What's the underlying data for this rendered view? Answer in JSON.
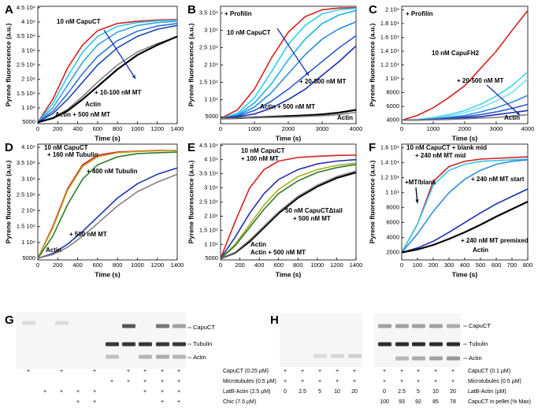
{
  "chart_data": [
    {
      "panel": "A",
      "type": "line",
      "xlabel": "Time (s)",
      "ylabel": "Pyrene fluorescence (a.u.)",
      "x": [
        0,
        150,
        300,
        450,
        600,
        800,
        1000,
        1200,
        1400
      ],
      "xlim": [
        0,
        1400
      ],
      "xticks": [
        0,
        200,
        400,
        600,
        800,
        1000,
        1200,
        1400
      ],
      "ylim": [
        4500,
        45500
      ],
      "yticks": [
        5000,
        {
          "value": 10000,
          "label": "1 10⁴"
        },
        {
          "value": 15000,
          "label": "1.5 10⁴"
        },
        {
          "value": 20000,
          "label": "2 10⁴"
        },
        {
          "value": 25000,
          "label": "2.5 10⁴"
        },
        {
          "value": 30000,
          "label": "3 10⁴"
        },
        {
          "value": 35000,
          "label": "3.5 10⁴"
        },
        {
          "value": 40000,
          "label": "4 10⁴"
        },
        {
          "value": 45000,
          "label": "4.5 10⁴"
        }
      ],
      "series": [
        {
          "name": "10 nM CapuCT",
          "color": "#d62020",
          "values": [
            5000,
            13000,
            24000,
            32000,
            37000,
            39500,
            40300,
            40700,
            40900
          ]
        },
        {
          "color": "#2cc8ea",
          "values": [
            5000,
            11500,
            21000,
            29500,
            35000,
            38500,
            39800,
            40400,
            40700
          ]
        },
        {
          "color": "#35a2e2",
          "values": [
            5000,
            10000,
            18000,
            26000,
            32000,
            36500,
            38800,
            39800,
            40300
          ]
        },
        {
          "color": "#2f72d2",
          "values": [
            5000,
            8800,
            15000,
            22000,
            28000,
            33500,
            36800,
            38600,
            39500
          ]
        },
        {
          "color": "#1c48b5",
          "values": [
            5000,
            8000,
            13000,
            19000,
            25000,
            31000,
            35000,
            37500,
            38800
          ]
        },
        {
          "name": "Actin",
          "color": "#808080",
          "values": [
            5000,
            6500,
            9500,
            14000,
            19000,
            25000,
            29500,
            32500,
            34800
          ]
        },
        {
          "name": "Actin + 500 nM MT",
          "color": "#000000",
          "values": [
            5000,
            6400,
            9000,
            13000,
            17500,
            23500,
            28500,
            32000,
            35000
          ]
        }
      ],
      "annotations": [
        {
          "text": "+ 10-100 nM MT",
          "color": "#1a2db0"
        }
      ]
    },
    {
      "panel": "B",
      "type": "line",
      "xlabel": "Time (s)",
      "ylabel": "Pyrene fluorescence (a.u.)",
      "x": [
        0,
        500,
        1000,
        1500,
        2000,
        2500,
        3000,
        3500,
        4000
      ],
      "xlim": [
        0,
        4000
      ],
      "xticks": [
        0,
        1000,
        2000,
        3000,
        4000
      ],
      "ylim": [
        3000,
        37000
      ],
      "yticks": [
        5000,
        {
          "value": 10000,
          "label": "1 10⁴"
        },
        {
          "value": 15000,
          "label": "1.5 10⁴"
        },
        {
          "value": 20000,
          "label": "2 10⁴"
        },
        {
          "value": 25000,
          "label": "2.5 10⁴"
        },
        {
          "value": 30000,
          "label": "3 10⁴"
        },
        {
          "value": 35000,
          "label": "3.5 10⁴"
        }
      ],
      "series": [
        {
          "name": "10 nM CapuCT",
          "color": "#d62020",
          "values": [
            4500,
            7000,
            13000,
            22000,
            29500,
            34000,
            36000,
            36500,
            36600
          ]
        },
        {
          "color": "#2ad0ee",
          "values": [
            4500,
            6000,
            10500,
            18000,
            26000,
            31500,
            34800,
            36000,
            36400
          ]
        },
        {
          "color": "#1fb2e8",
          "values": [
            4500,
            5600,
            9000,
            14500,
            21500,
            27500,
            32000,
            34500,
            35800
          ]
        },
        {
          "color": "#2d8ae0",
          "values": [
            4500,
            5400,
            7800,
            12000,
            17500,
            23000,
            27500,
            30500,
            32500
          ]
        },
        {
          "color": "#2a5ed0",
          "values": [
            4500,
            5200,
            6800,
            9500,
            13000,
            17000,
            21000,
            25000,
            28500
          ]
        },
        {
          "color": "#1a2db0",
          "values": [
            4500,
            5000,
            5800,
            7500,
            10000,
            13000,
            17000,
            21000,
            25500
          ]
        },
        {
          "name": "Actin + 500 nM MT",
          "color": "#000000",
          "values": [
            4500,
            4600,
            4800,
            5000,
            5200,
            5400,
            5700,
            6200,
            7000
          ]
        },
        {
          "name": "Actin",
          "color": "#808080",
          "values": [
            4500,
            4600,
            4700,
            4800,
            4900,
            5100,
            5300,
            5600,
            6300
          ]
        }
      ],
      "annotations": [
        {
          "text": "+ Profilin",
          "color": "#000000"
        },
        {
          "text": "+ 20-500 nM MT",
          "color": "#1a2db0"
        }
      ]
    },
    {
      "panel": "C",
      "type": "line",
      "xlabel": "Time (s)",
      "ylabel": "Pyrene fluorescence (a.u.)",
      "x": [
        0,
        500,
        1000,
        1500,
        2000,
        2500,
        3000,
        3500,
        4000
      ],
      "xlim": [
        0,
        4000
      ],
      "xticks": [
        0,
        1000,
        2000,
        3000,
        4000
      ],
      "ylim": [
        3500,
        20500
      ],
      "yticks": [
        4000,
        6000,
        8000,
        {
          "value": 10000,
          "label": "1 10⁴"
        },
        {
          "value": 12000,
          "label": "1.2 10⁴"
        },
        {
          "value": 14000,
          "label": "1.4 10⁴"
        },
        {
          "value": 16000,
          "label": "1.6 10⁴"
        },
        {
          "value": 18000,
          "label": "1.8 10⁴"
        },
        {
          "value": 20000,
          "label": "2 10⁴"
        }
      ],
      "series": [
        {
          "name": "10 nM CapuFH2",
          "color": "#d62020",
          "values": [
            4000,
            4700,
            5800,
            7300,
            9000,
            11500,
            14000,
            17000,
            19900
          ]
        },
        {
          "color": "#3fd6f0",
          "values": [
            4000,
            4100,
            4400,
            4800,
            5400,
            6300,
            7500,
            9000,
            11000
          ]
        },
        {
          "color": "#7fdcf2",
          "values": [
            4000,
            4100,
            4300,
            4600,
            5100,
            5800,
            6800,
            8000,
            10000
          ]
        },
        {
          "color": "#2c8ae0",
          "values": [
            4000,
            4050,
            4200,
            4400,
            4700,
            5200,
            5800,
            6600,
            7600
          ]
        },
        {
          "color": "#2a5ed0",
          "values": [
            4000,
            4050,
            4150,
            4300,
            4500,
            4800,
            5200,
            5700,
            6300
          ]
        },
        {
          "color": "#1a2db0",
          "values": [
            4000,
            4000,
            4100,
            4200,
            4350,
            4500,
            4800,
            5100,
            5400
          ]
        },
        {
          "name": "Actin",
          "color": "#808080",
          "values": [
            4000,
            4000,
            4050,
            4100,
            4200,
            4300,
            4400,
            4600,
            4800
          ]
        }
      ],
      "annotations": [
        {
          "text": "+ Profilin",
          "color": "#000000"
        },
        {
          "text": "+ 20-500 nM MT",
          "color": "#1a2db0"
        }
      ]
    },
    {
      "panel": "D",
      "type": "line",
      "xlabel": "Time (s)",
      "ylabel": "Pyrene fluorescence (a.u.)",
      "x": [
        0,
        150,
        300,
        450,
        600,
        800,
        1000,
        1200,
        1400
      ],
      "xlim": [
        0,
        1400
      ],
      "xticks": [
        0,
        200,
        400,
        600,
        800,
        1000,
        1200,
        1400
      ],
      "ylim": [
        4500,
        41000
      ],
      "yticks": [
        5000,
        {
          "value": 10000,
          "label": "1 10⁴"
        },
        {
          "value": 15000,
          "label": "1.5 10⁴"
        },
        {
          "value": 20000,
          "label": "2 10⁴"
        },
        {
          "value": 25000,
          "label": "2.5 10⁴"
        },
        {
          "value": 30000,
          "label": "3 10⁴"
        },
        {
          "value": 35000,
          "label": "3.5 10⁴"
        },
        {
          "value": 40000,
          "label": "4 10⁴"
        }
      ],
      "series": [
        {
          "name": "10 nM CapuCT",
          "color": "#d62020",
          "values": [
            5000,
            15000,
            27000,
            34500,
            37500,
            38500,
            38800,
            39000,
            39000
          ]
        },
        {
          "name": "+ 160 nM Tubulin",
          "color": "#b9a520",
          "values": [
            5000,
            14500,
            26500,
            34000,
            37000,
            38300,
            38700,
            38900,
            39000
          ]
        },
        {
          "name": "+ 400 nM Tubulin",
          "color": "#2f7a2a",
          "values": [
            5000,
            12000,
            22000,
            30000,
            34500,
            37000,
            38000,
            38300,
            38500
          ]
        },
        {
          "name": "+ 500 nM MT",
          "color": "#2030b0",
          "values": [
            5000,
            6500,
            9500,
            13500,
            18000,
            24000,
            28500,
            31500,
            33500
          ]
        },
        {
          "name": "Actin",
          "color": "#808080",
          "values": [
            5000,
            6200,
            8500,
            12000,
            16000,
            21500,
            26000,
            29000,
            31500
          ]
        }
      ],
      "annotations": []
    },
    {
      "panel": "E",
      "type": "line",
      "xlabel": "Time (s)",
      "ylabel": "Pyrene fluorescence (a.u.)",
      "x": [
        0,
        150,
        300,
        450,
        600,
        800,
        1000,
        1200,
        1400
      ],
      "xlim": [
        0,
        1400
      ],
      "xticks": [
        0,
        200,
        400,
        600,
        800,
        1000,
        1200,
        1400
      ],
      "ylim": [
        4500,
        45500
      ],
      "yticks": [
        5000,
        {
          "value": 10000,
          "label": "1 10⁴"
        },
        {
          "value": 15000,
          "label": "1.5 10⁴"
        },
        {
          "value": 20000,
          "label": "2 10⁴"
        },
        {
          "value": 25000,
          "label": "2.5 10⁴"
        },
        {
          "value": 30000,
          "label": "3 10⁴"
        },
        {
          "value": 35000,
          "label": "3.5 10⁴"
        },
        {
          "value": 40000,
          "label": "4 10⁴"
        },
        {
          "value": 45000,
          "label": "4.5 10⁴"
        }
      ],
      "series": [
        {
          "name": "10 nM CapuCT",
          "color": "#d62020",
          "values": [
            5000,
            18000,
            30000,
            36500,
            39500,
            40800,
            41200,
            41500,
            41600
          ]
        },
        {
          "name": "+ 100 nM MT",
          "color": "#2030b0",
          "values": [
            5000,
            12500,
            21000,
            28000,
            33000,
            36500,
            38500,
            39500,
            40000
          ]
        },
        {
          "name": "50 nM CapuCTΔtail",
          "color": "#a8b020",
          "values": [
            5000,
            10000,
            17000,
            24000,
            29500,
            34000,
            36500,
            38000,
            38800
          ]
        },
        {
          "name": "+ 500 nM MT",
          "color": "#2f7a2a",
          "values": [
            5000,
            9500,
            16000,
            22500,
            28000,
            32500,
            35500,
            37200,
            38300
          ]
        },
        {
          "name": "Actin + 500 nM MT",
          "color": "#000000",
          "values": [
            5000,
            7000,
            11000,
            16000,
            21000,
            26500,
            30500,
            33500,
            35500
          ]
        },
        {
          "name": "Actin",
          "color": "#808080",
          "values": [
            5000,
            7200,
            11500,
            16500,
            21500,
            27000,
            31000,
            34000,
            36000
          ]
        }
      ],
      "annotations": []
    },
    {
      "panel": "F",
      "type": "line",
      "xlabel": "Time (s)",
      "ylabel": "Pyrene fluorescence (a.u.)",
      "x": [
        0,
        100,
        200,
        300,
        400,
        500,
        600,
        700,
        800
      ],
      "xlim": [
        0,
        800
      ],
      "xticks": [
        0,
        100,
        200,
        300,
        400,
        500,
        600,
        700,
        800
      ],
      "ylim": [
        1000,
        16500
      ],
      "yticks": [
        2000,
        4000,
        6000,
        8000,
        {
          "value": 10000,
          "label": "1 10⁴"
        },
        {
          "value": 12000,
          "label": "1.2 10⁴"
        },
        {
          "value": 14000,
          "label": "1.4 10⁴"
        },
        {
          "value": 16000,
          "label": "1.6 10⁴"
        }
      ],
      "series": [
        {
          "name": "10 nM CapuCT + blank mid",
          "color": "#d62020",
          "values": [
            2000,
            5800,
            11500,
            13500,
            14200,
            14500,
            14600,
            14700,
            14800
          ]
        },
        {
          "name": "+ 240 nM MT mid",
          "color": "#2cc8ea",
          "values": [
            2000,
            5800,
            11000,
            13000,
            13800,
            14200,
            14300,
            14400,
            14500
          ]
        },
        {
          "name": "+ 240 nM MT start",
          "color": "#2f8ee0",
          "values": [
            2000,
            4500,
            7500,
            10000,
            11800,
            13000,
            13800,
            14200,
            14400
          ]
        },
        {
          "name": "+ 240 nM MT premixed",
          "color": "#1a2db0",
          "values": [
            2000,
            2600,
            3500,
            4700,
            6000,
            7300,
            8500,
            9500,
            10500
          ]
        },
        {
          "name": "Actin",
          "color": "#000000",
          "values": [
            2000,
            2400,
            3000,
            3800,
            4700,
            5700,
            6800,
            7800,
            8800
          ]
        }
      ],
      "annotations": [
        {
          "text": "+MT/blank",
          "color": "#000000"
        }
      ]
    }
  ],
  "gels": [
    {
      "panel": "G",
      "band_labels": [
        "CapuCT",
        "Tubulin",
        "Actin"
      ],
      "rows": [
        {
          "label": "CapuCT (0.25 µM)",
          "lanes": [
            "+",
            null,
            "+",
            null,
            "+",
            null,
            "+",
            "+",
            "+",
            "+"
          ]
        },
        {
          "label": "Microtubules (0.5 µM)",
          "lanes": [
            null,
            null,
            null,
            null,
            null,
            "+",
            "+",
            "+",
            "+",
            "+"
          ]
        },
        {
          "label": "LatB-Actin (2.5 µM)",
          "lanes": [
            null,
            "+",
            "+",
            "+",
            "+",
            null,
            null,
            "+",
            "+",
            "+"
          ]
        },
        {
          "label": "Chic (7.5 µM)",
          "lanes": [
            null,
            null,
            null,
            "+",
            "+",
            null,
            null,
            null,
            "+",
            "+"
          ]
        }
      ]
    },
    {
      "panel": "H",
      "band_labels": [
        "CapuCT",
        "Tubulin",
        "Actin"
      ],
      "rows": [
        {
          "label": "CapuCT (0.1 µM)",
          "lanes": [
            "+",
            "+",
            "+",
            "+",
            "+",
            "+",
            "+",
            "+",
            "+",
            "+"
          ]
        },
        {
          "label": "Microtubules (0.5 µM)",
          "lanes": [
            "+",
            "+",
            "+",
            "+",
            "+",
            "+",
            "+",
            "+",
            "+",
            "+"
          ]
        },
        {
          "label": "LatB-Actin (µM)",
          "lanes": [
            0,
            2.5,
            5,
            10,
            20,
            0,
            2.5,
            5,
            10,
            20
          ]
        },
        {
          "label": "CapuCT in pellet (% Max)",
          "lanes": [
            null,
            null,
            null,
            null,
            null,
            100,
            93,
            92,
            85,
            78
          ]
        }
      ]
    }
  ]
}
